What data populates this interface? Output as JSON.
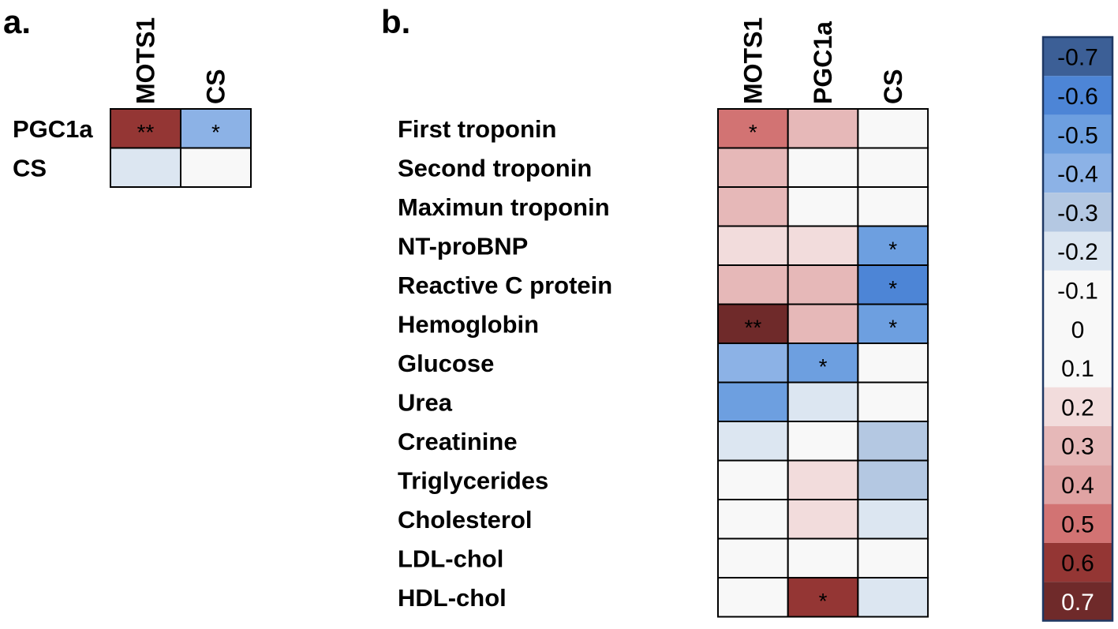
{
  "chart_data": [
    {
      "type": "heatmap",
      "panel_label": "a.",
      "columns": [
        "MOTS1",
        "CS"
      ],
      "rows": [
        "PGC1a",
        "CS"
      ],
      "values": [
        [
          0.6,
          -0.4
        ],
        [
          -0.2,
          0.0
        ]
      ],
      "significance": [
        [
          "**",
          "*"
        ],
        [
          "",
          ""
        ]
      ]
    },
    {
      "type": "heatmap",
      "panel_label": "b.",
      "columns": [
        "MOTS1",
        "PGC1a",
        "CS"
      ],
      "rows": [
        "First troponin",
        "Second troponin",
        "Maximun troponin",
        "NT-proBNP",
        "Reactive C protein",
        "Hemoglobin",
        "Glucose",
        "Urea",
        "Creatinine",
        "Triglycerides",
        "Cholesterol",
        "LDL-chol",
        "HDL-chol"
      ],
      "values": [
        [
          0.5,
          0.3,
          0.0
        ],
        [
          0.3,
          0.0,
          0.0
        ],
        [
          0.3,
          0.0,
          0.0
        ],
        [
          0.2,
          0.2,
          -0.5
        ],
        [
          0.3,
          0.3,
          -0.6
        ],
        [
          0.7,
          0.3,
          -0.5
        ],
        [
          -0.4,
          -0.5,
          0.0
        ],
        [
          -0.5,
          -0.2,
          0.0
        ],
        [
          -0.2,
          0.0,
          -0.3
        ],
        [
          0.0,
          0.2,
          -0.3
        ],
        [
          0.0,
          0.2,
          -0.2
        ],
        [
          0.0,
          0.0,
          0.0
        ],
        [
          0.0,
          0.6,
          -0.2
        ]
      ],
      "significance": [
        [
          "*",
          "",
          ""
        ],
        [
          "",
          "",
          ""
        ],
        [
          "",
          "",
          ""
        ],
        [
          "",
          "",
          "*"
        ],
        [
          "",
          "",
          "*"
        ],
        [
          "**",
          "",
          "*"
        ],
        [
          "",
          "*",
          ""
        ],
        [
          "",
          "",
          ""
        ],
        [
          "",
          "",
          ""
        ],
        [
          "",
          "",
          ""
        ],
        [
          "",
          "",
          ""
        ],
        [
          "",
          "",
          ""
        ],
        [
          "",
          "*",
          ""
        ]
      ]
    }
  ],
  "legend": {
    "values": [
      -0.7,
      -0.6,
      -0.5,
      -0.4,
      -0.3,
      -0.2,
      -0.1,
      0,
      0.1,
      0.2,
      0.3,
      0.4,
      0.5,
      0.6,
      0.7
    ],
    "labels": [
      "-0.7",
      "-0.6",
      "-0.5",
      "-0.4",
      "-0.3",
      "-0.2",
      "-0.1",
      "0",
      "0.1",
      "0.2",
      "0.3",
      "0.4",
      "0.5",
      "0.6",
      "0.7"
    ]
  },
  "colors": {
    "-0.7": "#3c5f96",
    "-0.6": "#4d85d6",
    "-0.5": "#6d9fe0",
    "-0.4": "#8cb2e6",
    "-0.3": "#b4c8e2",
    "-0.2": "#dce6f1",
    "-0.1": "#f8f8f8",
    "0": "#f8f8f8",
    "0.1": "#f8f8f8",
    "0.2": "#f2dcdc",
    "0.3": "#e6b8b8",
    "0.4": "#e0a3a3",
    "0.5": "#d27373",
    "0.6": "#943634",
    "0.7": "#6f2a2a",
    "border": "#000000",
    "legend_border": "#1f3864"
  }
}
